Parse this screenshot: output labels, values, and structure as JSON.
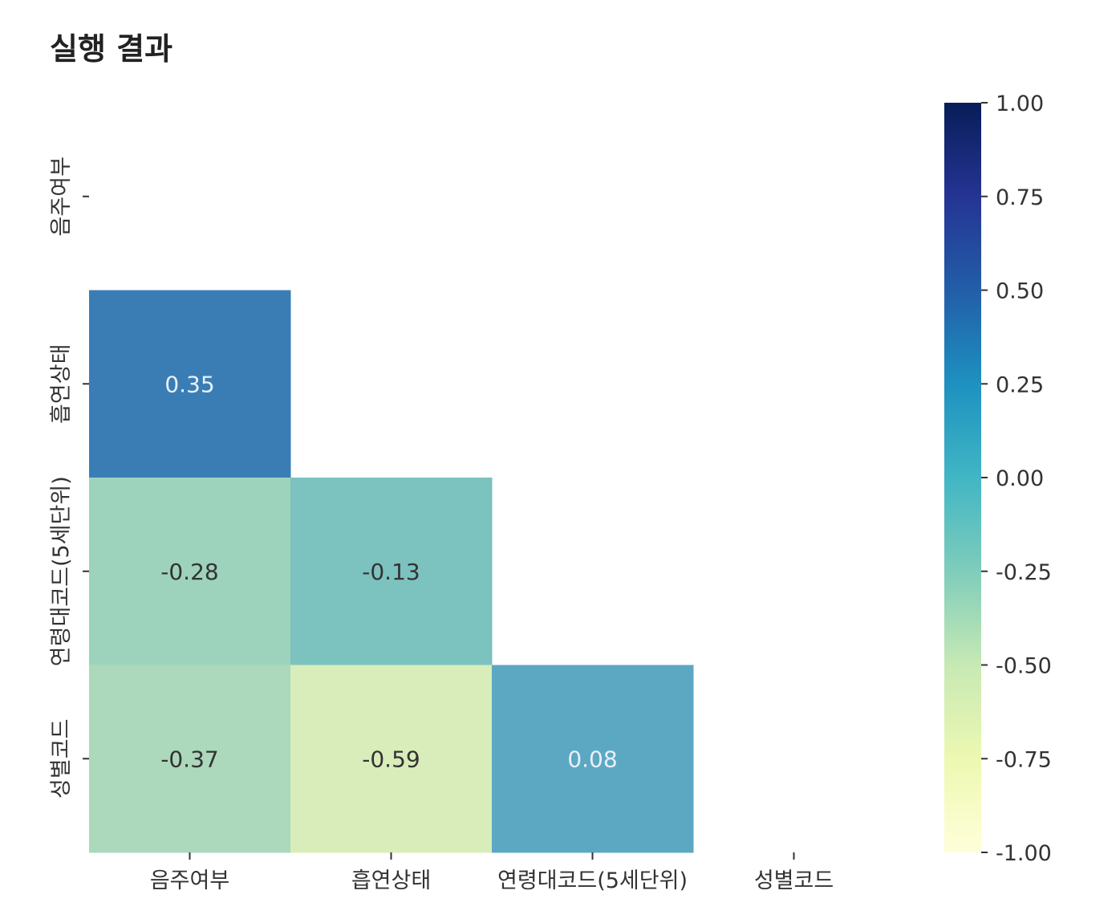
{
  "page": {
    "title": "실행 결과"
  },
  "chart_data": {
    "type": "heatmap",
    "title": "",
    "rows": [
      "음주여부",
      "흡연상태",
      "연령대코드(5세단위)",
      "성별코드"
    ],
    "columns": [
      "음주여부",
      "흡연상태",
      "연령대코드(5세단위)",
      "성별코드"
    ],
    "mask": "upper-triangle-including-diagonal",
    "cells": [
      {
        "row": 1,
        "col": 0,
        "value": 0.35,
        "label": "0.35"
      },
      {
        "row": 2,
        "col": 0,
        "value": -0.28,
        "label": "-0.28"
      },
      {
        "row": 2,
        "col": 1,
        "value": -0.13,
        "label": "-0.13"
      },
      {
        "row": 3,
        "col": 0,
        "value": -0.37,
        "label": "-0.37"
      },
      {
        "row": 3,
        "col": 1,
        "value": -0.59,
        "label": "-0.59"
      },
      {
        "row": 3,
        "col": 2,
        "value": 0.08,
        "label": "0.08"
      }
    ],
    "colormap": "YlGnBu",
    "vmin": -1.0,
    "vmax": 1.0,
    "colorbar": {
      "placement": "right",
      "ticks": [
        1.0,
        0.75,
        0.5,
        0.25,
        0.0,
        -0.25,
        -0.5,
        -0.75,
        -1.0
      ],
      "tick_labels": [
        "1.00",
        "0.75",
        "0.50",
        "0.25",
        "0.00",
        "-0.25",
        "-0.50",
        "-0.75",
        "-1.00"
      ]
    },
    "cell_colors": {
      "0.35": "#3a7db5",
      "-0.28": "#9dd3bd",
      "-0.13": "#7cc2bf",
      "-0.37": "#acd8bb",
      "-0.59": "#d8edba",
      "0.08": "#5ca8c2"
    },
    "label_colors": {
      "light": "#e8f0f8",
      "dark": "#333333"
    }
  }
}
